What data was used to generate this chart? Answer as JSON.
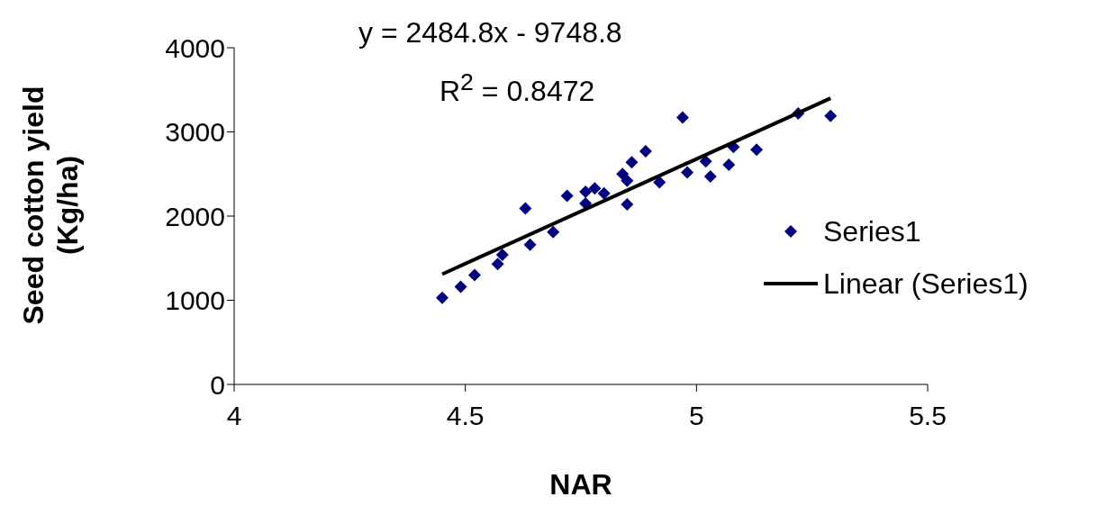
{
  "chart_data": {
    "type": "scatter",
    "xlabel": "NAR",
    "ylabel": "Seed cotton yield (Kg/ha)",
    "annotations": [
      "y = 2484.8x - 9748.8",
      "R$^{2}$ = 0.8472"
    ],
    "xlim": [
      4,
      5.5
    ],
    "xticks": [
      4,
      4.5,
      5,
      5.5
    ],
    "ylim": [
      0,
      4000
    ],
    "yticks": [
      0,
      1000,
      2000,
      3000,
      4000
    ],
    "grid": false,
    "legend": "right",
    "marker": "diamond",
    "series": [
      {
        "name": "Series1",
        "color": "#000080",
        "x": [
          4.45,
          4.49,
          4.52,
          4.57,
          4.58,
          4.63,
          4.64,
          4.69,
          4.72,
          4.76,
          4.76,
          4.78,
          4.8,
          4.84,
          4.85,
          4.85,
          4.86,
          4.89,
          4.92,
          4.97,
          4.98,
          5.02,
          5.03,
          5.07,
          5.08,
          5.13,
          5.22,
          5.29
        ],
        "values": [
          1030,
          1160,
          1300,
          1430,
          1540,
          2090,
          1660,
          1810,
          2240,
          2150,
          2290,
          2330,
          2270,
          2500,
          2420,
          2140,
          2640,
          2770,
          2400,
          3170,
          2520,
          2650,
          2470,
          2610,
          2820,
          2790,
          3220,
          3190
        ]
      },
      {
        "name": "Linear (Series1)",
        "type": "line",
        "marker": "none",
        "color": "#000000",
        "line_style": "solid",
        "x": [
          4.45,
          5.29
        ],
        "values": [
          1310,
          3400
        ]
      }
    ]
  }
}
